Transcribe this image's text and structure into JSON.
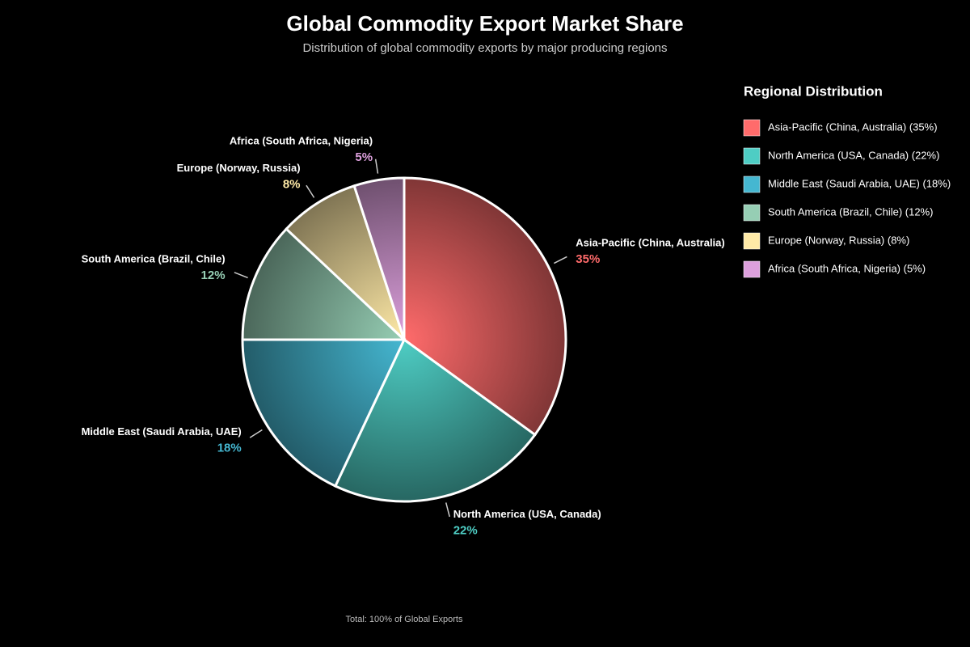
{
  "chart_data": {
    "type": "pie",
    "title": "Global Commodity Export Market Share",
    "subtitle": "Distribution of global commodity exports by major producing regions",
    "categories": [
      "Asia-Pacific (China, Australia)",
      "North America (USA, Canada)",
      "Middle East (Saudi Arabia, UAE)",
      "South America (Brazil, Chile)",
      "Europe (Norway, Russia)",
      "Africa (South Africa, Nigeria)"
    ],
    "values": [
      35,
      22,
      18,
      12,
      8,
      5
    ],
    "value_labels": [
      "35%",
      "22%",
      "18%",
      "12%",
      "8%",
      "5%"
    ],
    "colors": [
      "#ff6b6b",
      "#4ecdc4",
      "#45b7d1",
      "#96ceb4",
      "#ffeaa7",
      "#dda0dd"
    ],
    "legend_title": "Regional Distribution",
    "legend_labels": [
      "Asia-Pacific (China, Australia) (35%)",
      "North America (USA, Canada) (22%)",
      "Middle East (Saudi Arabia, UAE) (18%)",
      "South America (Brazil, Chile) (12%)",
      "Europe (Norway, Russia) (8%)",
      "Africa (South Africa, Nigeria) (5%)"
    ],
    "legend_position": "right",
    "note": "Total: 100% of Global Exports"
  }
}
